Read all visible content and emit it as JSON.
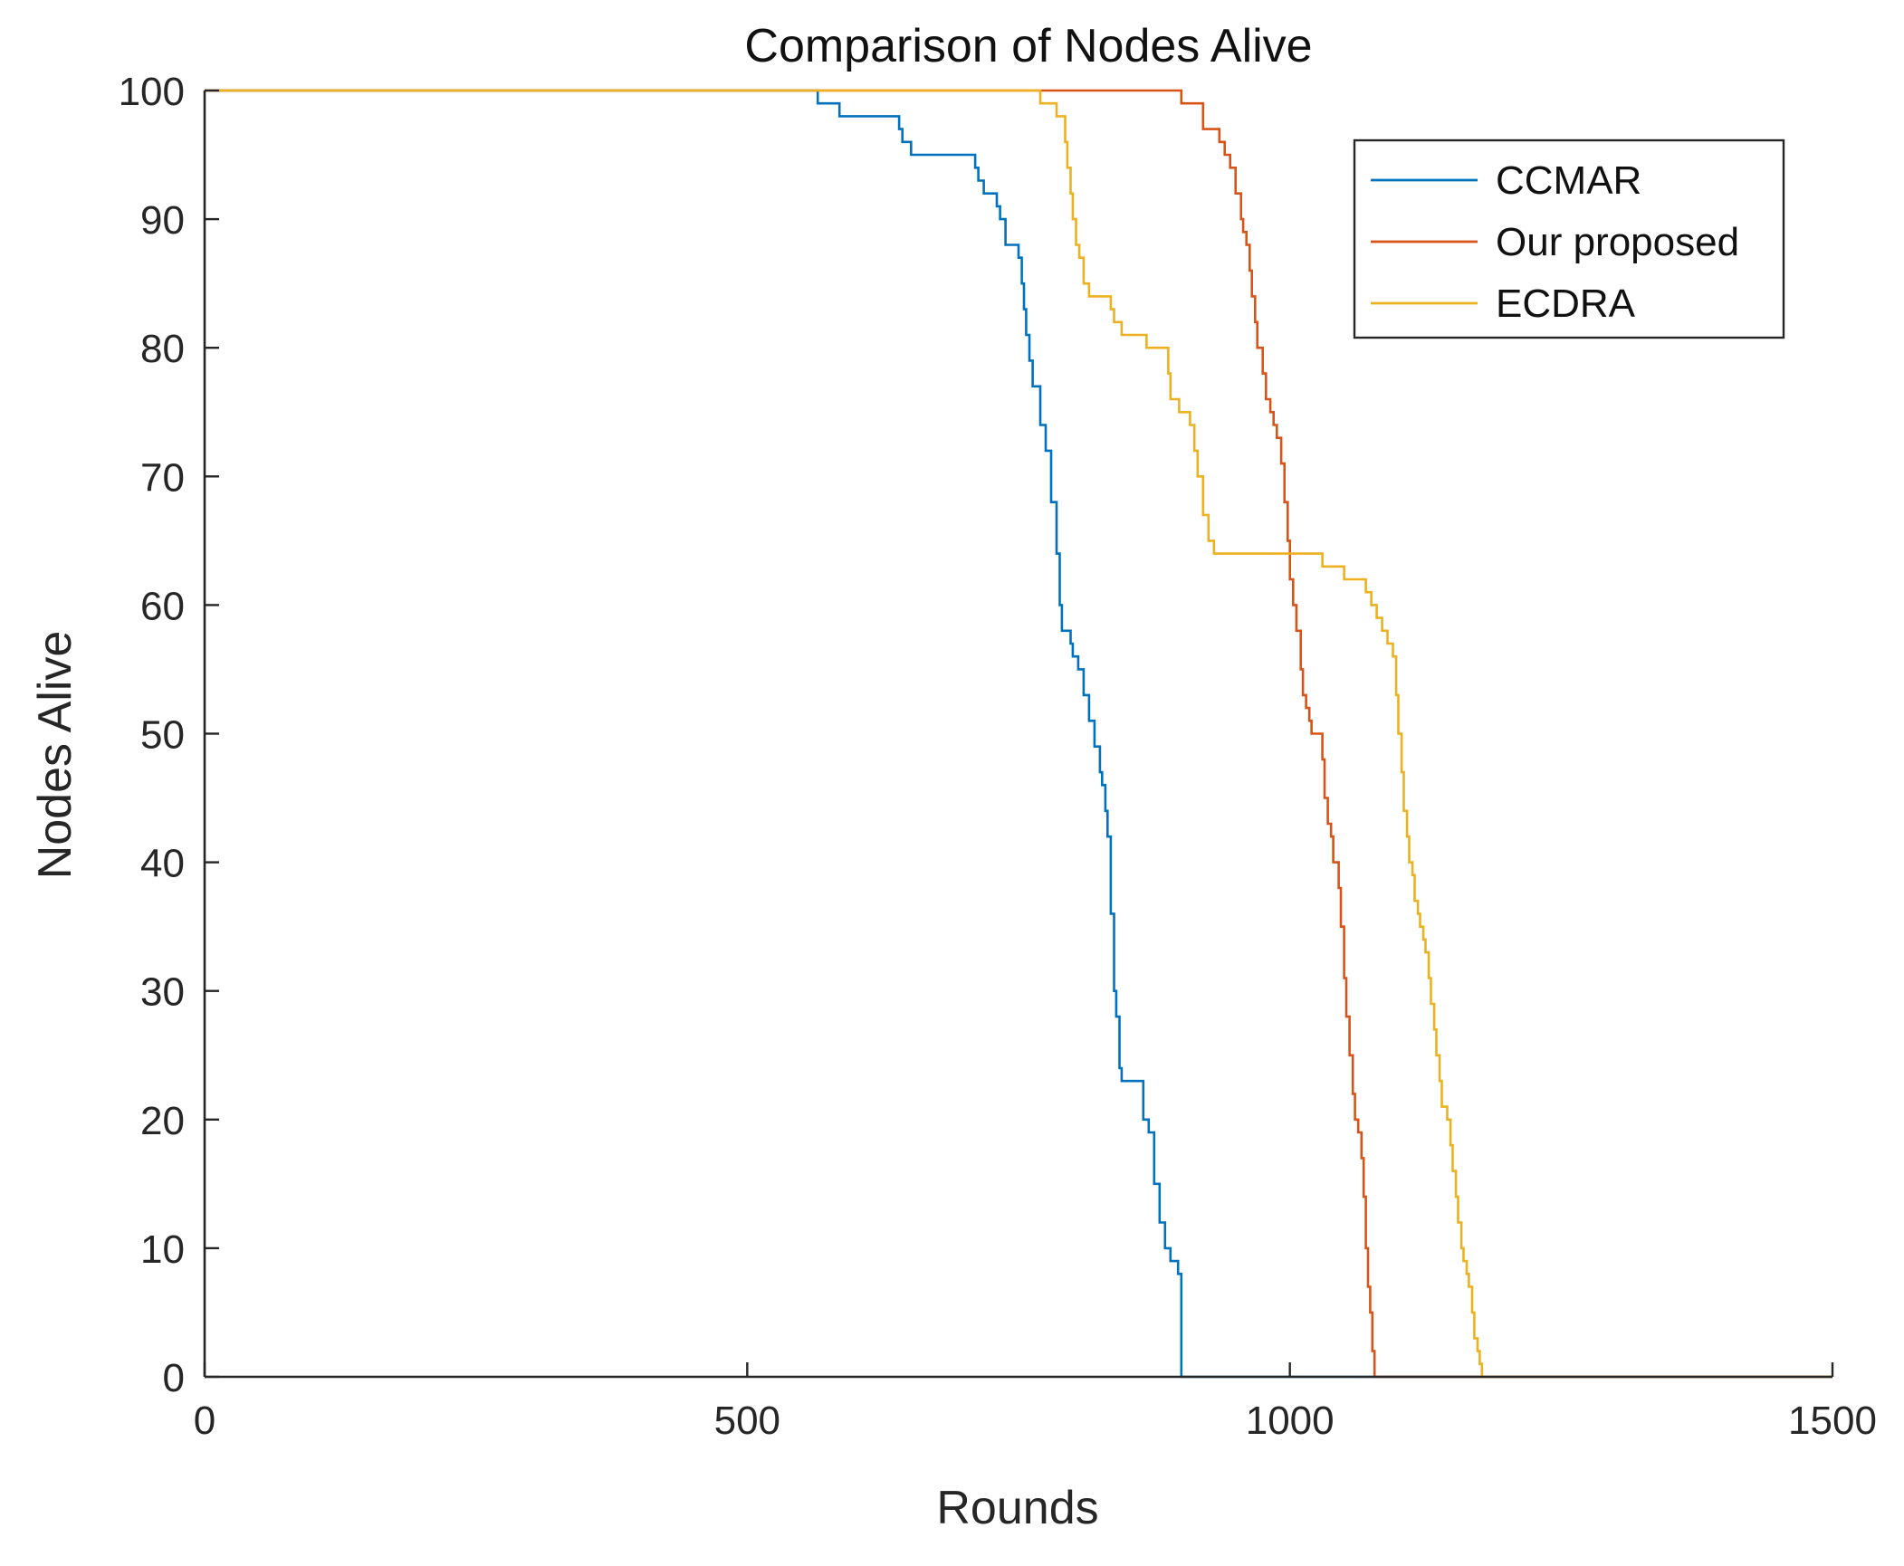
{
  "chart_data": {
    "type": "line",
    "title": "Comparison of Nodes Alive",
    "xlabel": "Rounds",
    "ylabel": "Nodes Alive",
    "xlim": [
      0,
      1500
    ],
    "ylim": [
      0,
      100
    ],
    "xticks": [
      0,
      500,
      1000,
      1500
    ],
    "yticks": [
      0,
      10,
      20,
      30,
      40,
      50,
      60,
      70,
      80,
      90,
      100
    ],
    "xtick_labels": [
      "0",
      "500",
      "1000",
      "1500"
    ],
    "ytick_labels": [
      "0",
      "10",
      "20",
      "30",
      "40",
      "50",
      "60",
      "70",
      "80",
      "90",
      "100"
    ],
    "grid": false,
    "legend_position": "top-right",
    "series": [
      {
        "name": "CCMAR",
        "color": "#0072BD",
        "step": true,
        "x": [
          0,
          565,
          567,
          585,
          590,
          610,
          640,
          643,
          648,
          651,
          655,
          660,
          710,
          713,
          718,
          725,
          730,
          733,
          738,
          745,
          750,
          753,
          755,
          757,
          760,
          763,
          765,
          770,
          775,
          780,
          785,
          788,
          790,
          793,
          795,
          798,
          800,
          805,
          810,
          815,
          820,
          822,
          825,
          827,
          830,
          832,
          835,
          838,
          840,
          843,
          845,
          850,
          855,
          860,
          865,
          870,
          875,
          880,
          885,
          890,
          893,
          897,
          900,
          1500
        ],
        "y": [
          100,
          99,
          99,
          98,
          98,
          98,
          97,
          96,
          96,
          95,
          95,
          95,
          94,
          93,
          92,
          92,
          91,
          90,
          88,
          88,
          87,
          85,
          83,
          81,
          79,
          77,
          77,
          74,
          72,
          68,
          64,
          60,
          58,
          58,
          58,
          57,
          56,
          55,
          53,
          51,
          49,
          49,
          47,
          46,
          44,
          42,
          36,
          30,
          28,
          24,
          23,
          23,
          23,
          23,
          20,
          19,
          15,
          12,
          10,
          9,
          9,
          8,
          0,
          0
        ]
      },
      {
        "name": "Our proposed",
        "color": "#D95319",
        "step": true,
        "x": [
          0,
          900,
          905,
          920,
          925,
          935,
          940,
          945,
          950,
          955,
          957,
          960,
          963,
          965,
          968,
          970,
          975,
          978,
          982,
          985,
          988,
          992,
          995,
          998,
          1000,
          1003,
          1006,
          1010,
          1012,
          1015,
          1018,
          1020,
          1025,
          1030,
          1032,
          1035,
          1038,
          1040,
          1045,
          1047,
          1050,
          1052,
          1055,
          1058,
          1060,
          1063,
          1066,
          1068,
          1070,
          1072,
          1074,
          1076,
          1078,
          1500
        ],
        "y": [
          100,
          99,
          99,
          97,
          97,
          96,
          95,
          94,
          92,
          90,
          89,
          88,
          86,
          84,
          82,
          80,
          78,
          76,
          75,
          74,
          73,
          71,
          68,
          65,
          62,
          60,
          58,
          55,
          53,
          52,
          51,
          50,
          50,
          48,
          45,
          43,
          42,
          40,
          38,
          35,
          31,
          28,
          25,
          22,
          20,
          19,
          17,
          14,
          10,
          7,
          5,
          2,
          0,
          0
        ]
      },
      {
        "name": "ECDRA",
        "color": "#EDB120",
        "step": true,
        "x": [
          0,
          770,
          775,
          785,
          793,
          795,
          798,
          800,
          803,
          806,
          810,
          815,
          825,
          835,
          838,
          845,
          855,
          860,
          868,
          875,
          880,
          888,
          890,
          893,
          895,
          898,
          900,
          905,
          908,
          912,
          915,
          920,
          925,
          930,
          935,
          940,
          945,
          950,
          955,
          960,
          965,
          970,
          975,
          980,
          985,
          990,
          995,
          1000,
          1005,
          1010,
          1015,
          1020,
          1025,
          1030,
          1035,
          1040,
          1045,
          1050,
          1055,
          1060,
          1065,
          1070,
          1075,
          1080,
          1085,
          1090,
          1095,
          1098,
          1100,
          1103,
          1105,
          1108,
          1110,
          1113,
          1115,
          1118,
          1120,
          1123,
          1125,
          1128,
          1130,
          1133,
          1135,
          1138,
          1140,
          1145,
          1148,
          1150,
          1153,
          1155,
          1158,
          1160,
          1163,
          1165,
          1168,
          1170,
          1173,
          1175,
          1177,
          1180,
          1182,
          1500
        ],
        "y": [
          100,
          99,
          99,
          98,
          96,
          94,
          92,
          90,
          88,
          87,
          85,
          84,
          84,
          83,
          82,
          81,
          81,
          81,
          80,
          80,
          80,
          78,
          76,
          76,
          76,
          75,
          75,
          75,
          74,
          72,
          70,
          67,
          65,
          64,
          64,
          64,
          64,
          64,
          64,
          64,
          64,
          64,
          64,
          64,
          64,
          64,
          64,
          64,
          64,
          64,
          64,
          64,
          64,
          63,
          63,
          63,
          63,
          62,
          62,
          62,
          62,
          61,
          60,
          59,
          58,
          57,
          56,
          53,
          50,
          47,
          44,
          42,
          40,
          39,
          37,
          36,
          35,
          34,
          33,
          31,
          29,
          27,
          25,
          23,
          21,
          20,
          18,
          16,
          14,
          12,
          10,
          9,
          8,
          7,
          5,
          3,
          2,
          1,
          0,
          0,
          0,
          0
        ]
      }
    ]
  }
}
